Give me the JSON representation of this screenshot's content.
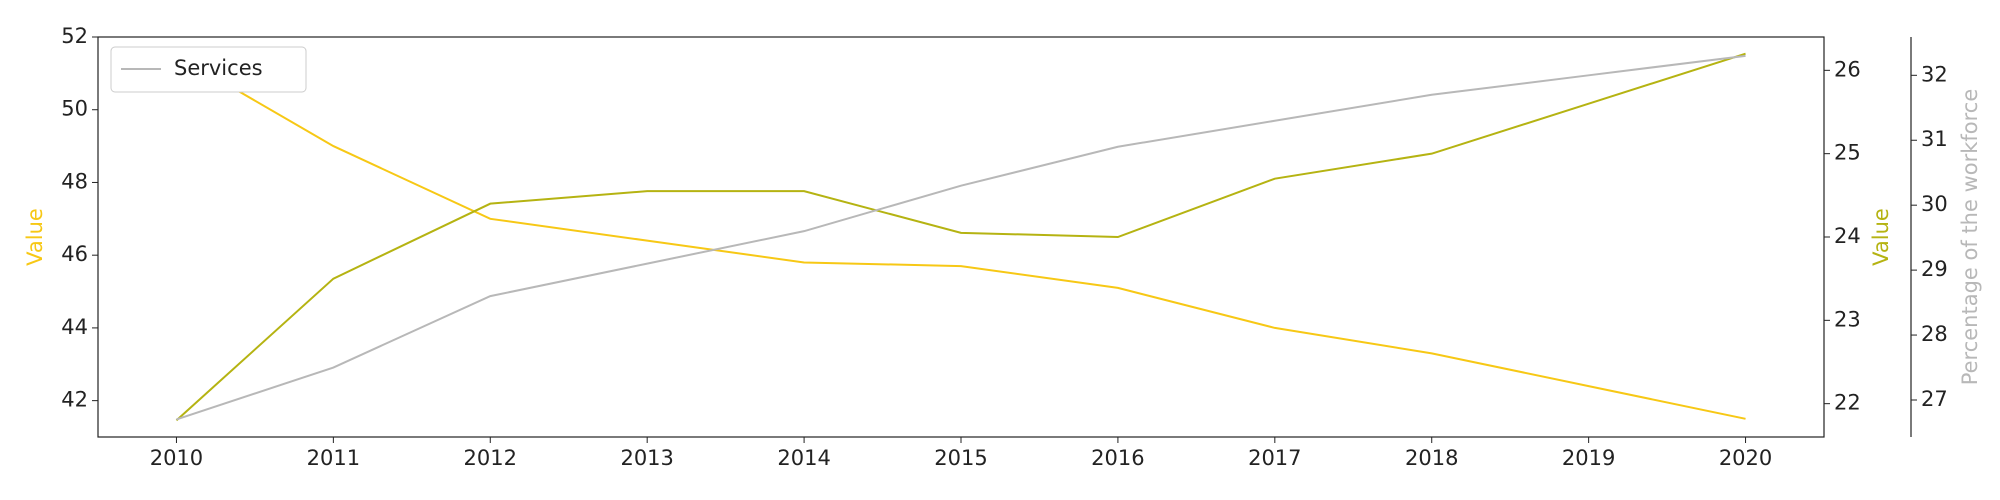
{
  "chart_data": {
    "type": "line",
    "x": [
      2010,
      2011,
      2012,
      2013,
      2014,
      2015,
      2016,
      2017,
      2018,
      2019,
      2020
    ],
    "xlim": [
      2009.5,
      2020.5
    ],
    "xticks": [
      2010,
      2011,
      2012,
      2013,
      2014,
      2015,
      2016,
      2017,
      2018,
      2019,
      2020
    ],
    "ylabel": "Value",
    "y2label": "Value",
    "y3label": "Percentage of the workforce",
    "ylim": [
      41,
      52
    ],
    "yticks": [
      42,
      44,
      46,
      48,
      50,
      52
    ],
    "y2lim": [
      21.6,
      26.4
    ],
    "y2ticks": [
      22,
      23,
      24,
      25,
      26
    ],
    "y3lim": [
      26.43,
      32.59
    ],
    "y3ticks": [
      27,
      28,
      29,
      30,
      31,
      32
    ],
    "legend": "upper left",
    "series": [
      {
        "color": "#f7c815",
        "axis": "y",
        "values": [
          51.5,
          49.0,
          47.0,
          46.4,
          45.8,
          45.7,
          45.1,
          44.0,
          43.3,
          42.4,
          41.5
        ]
      },
      {
        "color": "#b5b312",
        "axis": "y2",
        "values": [
          21.8,
          23.5,
          24.4,
          24.55,
          24.55,
          24.05,
          24.0,
          24.7,
          25.0,
          25.6,
          26.2
        ]
      },
      {
        "name": "Services",
        "color": "#b8b8b8",
        "axis": "y3",
        "values": [
          26.7,
          27.5,
          28.6,
          29.1,
          29.6,
          30.3,
          30.9,
          31.3,
          31.7,
          32.0,
          32.3
        ]
      }
    ]
  }
}
